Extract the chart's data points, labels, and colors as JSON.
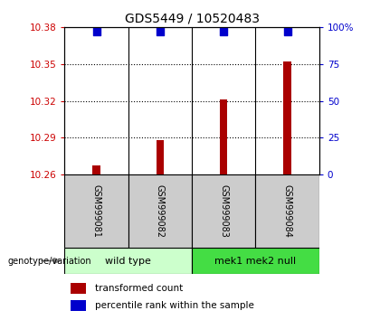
{
  "title": "GDS5449 / 10520483",
  "samples": [
    "GSM999081",
    "GSM999082",
    "GSM999083",
    "GSM999084"
  ],
  "bar_values": [
    10.267,
    10.288,
    10.321,
    10.352
  ],
  "percentile_values": [
    97,
    97,
    97,
    97
  ],
  "ymin": 10.26,
  "ymax": 10.38,
  "yticks": [
    10.26,
    10.29,
    10.32,
    10.35,
    10.38
  ],
  "right_yticks": [
    0,
    25,
    50,
    75,
    100
  ],
  "right_ytick_labels": [
    "0",
    "25",
    "50",
    "75",
    "100%"
  ],
  "bar_color": "#aa0000",
  "dot_color": "#0000cc",
  "left_tick_color": "#cc0000",
  "right_tick_color": "#0000cc",
  "group1_label": "wild type",
  "group2_label": "mek1 mek2 null",
  "group1_color": "#ccffcc",
  "group2_color": "#44dd44",
  "genotype_label": "genotype/variation",
  "legend_bar_label": "transformed count",
  "legend_dot_label": "percentile rank within the sample",
  "bar_width": 0.12,
  "dot_size": 30,
  "title_fontsize": 10,
  "tick_fontsize": 7.5,
  "sample_box_color": "#cccccc",
  "sample_fontsize": 7
}
